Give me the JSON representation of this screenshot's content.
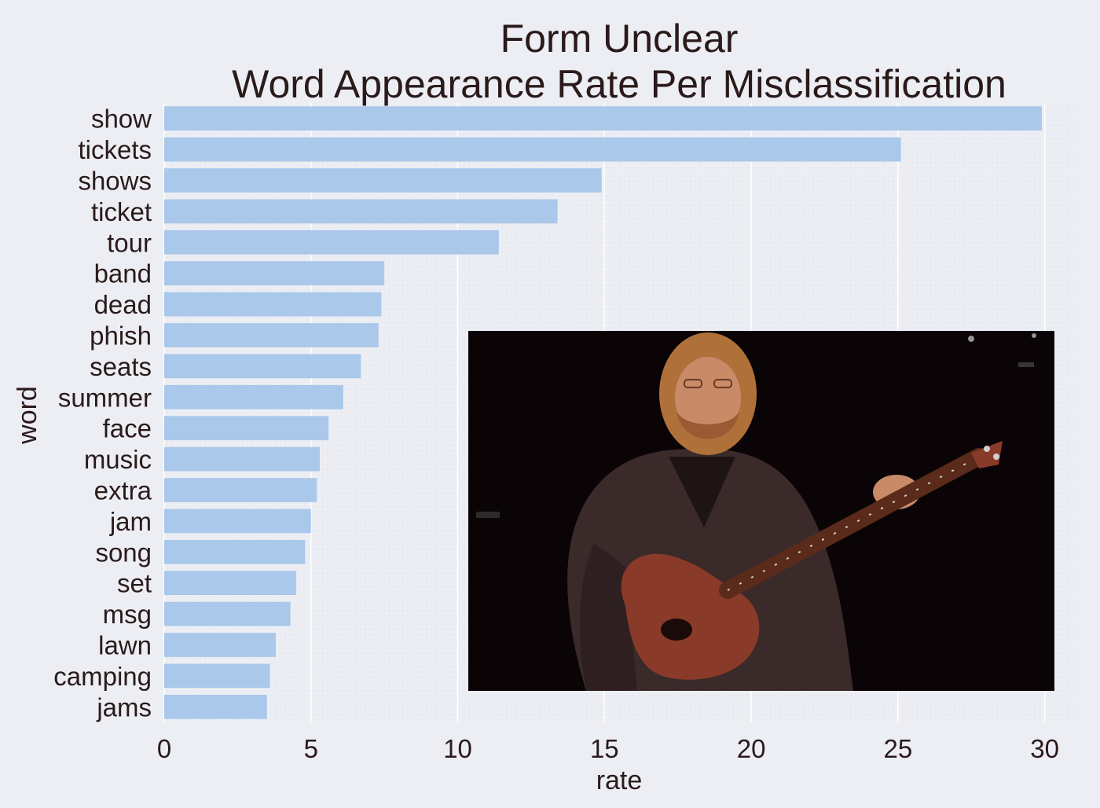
{
  "chart_data": {
    "type": "bar",
    "orientation": "horizontal",
    "title": "Form Unclear",
    "subtitle": "Word Appearance Rate Per Misclassification",
    "xlabel": "rate",
    "ylabel": "word",
    "xlim": [
      0,
      31
    ],
    "xticks": [
      0,
      5,
      10,
      15,
      20,
      25,
      30
    ],
    "grid": true,
    "bar_color": "#a9c8ea",
    "categories": [
      "show",
      "tickets",
      "shows",
      "ticket",
      "tour",
      "band",
      "dead",
      "phish",
      "seats",
      "summer",
      "face",
      "music",
      "extra",
      "jam",
      "song",
      "set",
      "msg",
      "lawn",
      "camping",
      "jams"
    ],
    "values": [
      29.9,
      25.1,
      14.9,
      13.4,
      11.4,
      7.5,
      7.4,
      7.3,
      6.7,
      6.1,
      5.6,
      5.3,
      5.2,
      5.0,
      4.8,
      4.5,
      4.3,
      3.8,
      3.6,
      3.5
    ]
  },
  "overlay_image": {
    "description_icon": "guitarist-photo-icon",
    "colors": {
      "background": "#0a0406",
      "shirt": "#3a2a2a",
      "hair": "#b0703a",
      "skin": "#c98a68",
      "guitar": "#8a3a28"
    }
  }
}
